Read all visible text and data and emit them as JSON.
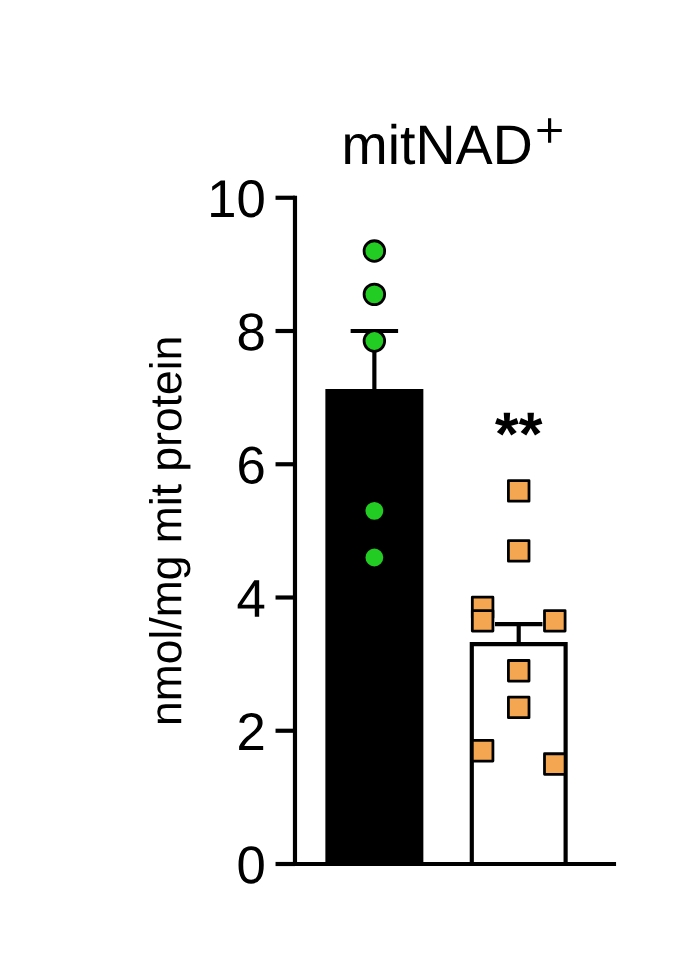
{
  "chart_data": {
    "type": "bar",
    "title": "mitNAD$^{+}$",
    "ylabel": "nmol/mg mit protein",
    "categories": [
      null,
      null
    ],
    "series": [
      {
        "colors": [
          "#000000",
          "#ffffff"
        ],
        "values": [
          7.1,
          3.3
        ],
        "errors": [
          [
            7.1,
            8.0
          ],
          [
            3.3,
            3.6
          ]
        ]
      },
      {
        "type": "scatter",
        "color": "#22cc22",
        "marker": "circle",
        "values": [
          9.2,
          null
        ]
      },
      {
        "type": "scatter",
        "color": "#22cc22",
        "marker": "circle",
        "values": [
          8.55,
          null
        ]
      },
      {
        "type": "scatter",
        "color": "#22cc22",
        "marker": "circle",
        "values": [
          7.85,
          null
        ]
      },
      {
        "type": "scatter",
        "color": "#22cc22",
        "marker": "circle",
        "values": [
          5.3,
          null
        ]
      },
      {
        "type": "scatter",
        "color": "#22cc22",
        "marker": "circle",
        "values": [
          4.6,
          null
        ]
      },
      {
        "type": "scatter",
        "color": "#f5a650",
        "marker": "square",
        "values": [
          null,
          5.6
        ]
      },
      {
        "type": "scatter",
        "color": "#f5a650",
        "marker": "square",
        "values": [
          null,
          4.7
        ]
      },
      {
        "type": "scatter",
        "color": "#f5a650",
        "marker": "square",
        "values": [
          null,
          3.85
        ]
      },
      {
        "type": "scatter",
        "color": "#f5a650",
        "marker": "square",
        "values": [
          null,
          3.65
        ]
      },
      {
        "type": "scatter",
        "color": "#f5a650",
        "marker": "square",
        "values": [
          null,
          3.65
        ]
      },
      {
        "type": "scatter",
        "color": "#f5a650",
        "marker": "square",
        "values": [
          null,
          2.9
        ]
      },
      {
        "type": "scatter",
        "color": "#f5a650",
        "marker": "square",
        "values": [
          null,
          2.35
        ]
      },
      {
        "type": "scatter",
        "color": "#f5a650",
        "marker": "square",
        "values": [
          null,
          1.7
        ]
      },
      {
        "type": "scatter",
        "color": "#f5a650",
        "marker": "square",
        "values": [
          null,
          1.5
        ]
      }
    ],
    "annotations": [
      "**"
    ],
    "ylim": [
      0,
      10
    ],
    "yticks": [
      0,
      2,
      4,
      6,
      8,
      10
    ],
    "grid": false,
    "legend": false
  }
}
